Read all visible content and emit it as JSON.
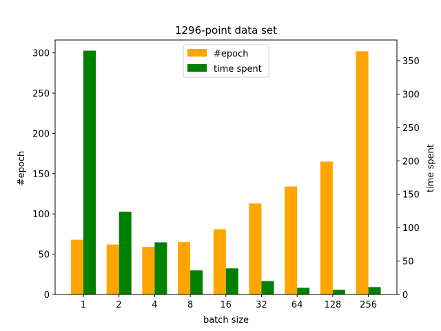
{
  "chart_data": {
    "type": "bar",
    "title": "1296-point data set",
    "xlabel": "batch size",
    "ylabel_left": "#epoch",
    "ylabel_right": "time spent",
    "categories": [
      "1",
      "2",
      "4",
      "8",
      "16",
      "32",
      "64",
      "128",
      "256"
    ],
    "series": [
      {
        "name": "#epoch",
        "axis": "left",
        "color": "#ffa500",
        "values": [
          68,
          62,
          59,
          65,
          81,
          113,
          134,
          165,
          302
        ]
      },
      {
        "name": "time spent",
        "axis": "right",
        "color": "#008000",
        "values": [
          365,
          124,
          78,
          36,
          39,
          20,
          10,
          7,
          11
        ]
      }
    ],
    "ylim_left": [
      0,
      316
    ],
    "ylim_right": [
      0,
      381
    ],
    "yticks_left": [
      0,
      50,
      100,
      150,
      200,
      250,
      300
    ],
    "yticks_right": [
      0,
      50,
      100,
      150,
      200,
      250,
      300,
      350
    ],
    "legend_position": "top-center",
    "grid": false
  }
}
